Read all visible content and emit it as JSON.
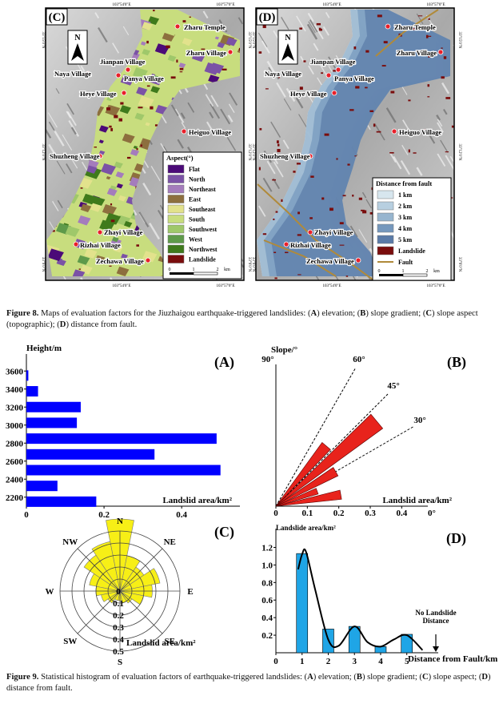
{
  "figure8": {
    "maps": [
      {
        "panel": "(C)",
        "north": "N",
        "lon_labels": [
          "103°54'0\"E",
          "103°57'0\"E"
        ],
        "lat_labels": [
          "33°15'0\"N",
          "33°12'0\"N",
          "33°9'0\"N"
        ],
        "villages": [
          "Zharu Temple",
          "Zharu Village",
          "Jianpan Village",
          "Naya Village",
          "Panya Village",
          "Heye Village",
          "Heiguo Village",
          "Shuzheng Village",
          "Zhayi Village",
          "Rizhai Village",
          "Zechawa Village"
        ],
        "legend": {
          "title": "Aspect(°)",
          "items": [
            {
              "label": "Flat",
              "color": "#4b0a78"
            },
            {
              "label": "North",
              "color": "#7b52a6"
            },
            {
              "label": "Northeast",
              "color": "#a47cbc"
            },
            {
              "label": "East",
              "color": "#8d6f3e"
            },
            {
              "label": "Southeast",
              "color": "#e2e28c"
            },
            {
              "label": "South",
              "color": "#c8dd7e"
            },
            {
              "label": "Southwest",
              "color": "#9fc86a"
            },
            {
              "label": "West",
              "color": "#5e9a4a"
            },
            {
              "label": "Northwest",
              "color": "#3f7a1c"
            },
            {
              "label": "Landslide",
              "color": "#7a0d0d"
            }
          ]
        },
        "scale": [
          "0",
          "1",
          "2",
          "km"
        ]
      },
      {
        "panel": "(D)",
        "north": "N",
        "lon_labels": [
          "103°54'0\"E",
          "103°57'0\"E"
        ],
        "lat_labels": [
          "33°15'0\"N",
          "33°12'0\"N",
          "33°9'0\"N"
        ],
        "villages": [
          "Zharu Temple",
          "Zharu Village",
          "Jianpan Village",
          "Naya Village",
          "Panya Village",
          "Heye Village",
          "Heiguo Village",
          "Shuzheng Village",
          "Zhayi Village",
          "Rizhai Village",
          "Zechawa Village"
        ],
        "legend": {
          "title": "Distance from fault",
          "items": [
            {
              "label": "1 km",
              "color": "#d7e6ee"
            },
            {
              "label": "2 km",
              "color": "#b7cfe0"
            },
            {
              "label": "3 km",
              "color": "#97b5cf"
            },
            {
              "label": "4 km",
              "color": "#7598bd"
            },
            {
              "label": "5 km",
              "color": "#5a7ba8"
            },
            {
              "label": "Landslide",
              "color": "#7a0d0d"
            },
            {
              "label": "Fault",
              "color": "#b08a3a",
              "symbol": "line"
            }
          ]
        },
        "scale": [
          "0",
          "1",
          "2",
          "km"
        ]
      }
    ],
    "caption": [
      "Figure 8.",
      " Maps of evaluation factors for the Jiuzhaigou earthquake-triggered landslides: (",
      "A",
      ") elevation; (",
      "B",
      ") slope gradient; (",
      "C",
      ") slope aspect (topographic); (",
      "D",
      ") distance from fault."
    ]
  },
  "chart_data": [
    {
      "type": "bar",
      "orientation": "horizontal",
      "panel": "(A)",
      "ylabel": "Height/m",
      "xlabel": "Landslid area/km²",
      "y": [
        2150,
        2325,
        2500,
        2675,
        2850,
        3025,
        3200,
        3375,
        3550
      ],
      "values": [
        0.18,
        0.08,
        0.5,
        0.33,
        0.49,
        0.13,
        0.14,
        0.03,
        0.005
      ],
      "color": "#0000ff",
      "xlim": [
        0,
        0.55
      ],
      "xticks": [
        0,
        0.2,
        0.4
      ],
      "ylim": [
        2100,
        3700
      ],
      "yticks": [
        2200,
        2400,
        2600,
        2800,
        3000,
        3200,
        3400,
        3600
      ]
    },
    {
      "type": "radial_bar",
      "panel": "(B)",
      "ylabel": "Slope/°",
      "xlabel": "Landslid area/km²",
      "angles": [
        10,
        20,
        30,
        40,
        50
      ],
      "values": [
        0.21,
        0.14,
        0.22,
        0.42,
        0.25
      ],
      "color": "#e8231c",
      "xlim": [
        0,
        0.45
      ],
      "xticks": [
        0,
        0.1,
        0.2,
        0.3,
        0.4
      ],
      "aticks": [
        {
          "value": 0,
          "label": "0°"
        },
        {
          "value": 30,
          "label": "30°"
        },
        {
          "value": 45,
          "label": "45°"
        },
        {
          "value": 60,
          "label": "60°"
        },
        {
          "value": 90,
          "label": "90°"
        }
      ]
    },
    {
      "type": "polar_bar",
      "panel": "(C)",
      "rlabel": "Landslid area/km²",
      "categories": [
        "N",
        null,
        "NE",
        null,
        "E",
        null,
        "SE",
        null,
        "S",
        null,
        "SW",
        null,
        "W",
        null,
        "NW",
        null
      ],
      "values": [
        0.6,
        0.3,
        0.24,
        0.34,
        0.27,
        0.2,
        0.12,
        0.1,
        0.08,
        0.08,
        0.12,
        0.16,
        0.2,
        0.26,
        0.36,
        0.42
      ],
      "color": "#f7ef16",
      "rlim": [
        0,
        0.5
      ],
      "rticks": [
        0,
        0.1,
        0.2,
        0.3,
        0.4,
        0.5
      ]
    },
    {
      "type": "bar",
      "orientation": "vertical",
      "panel": "(D)",
      "ylabel": "Landslide area/km²",
      "xlabel": "Distance from Fault/km",
      "annotation": "No Landslide Distance",
      "x": [
        1,
        2,
        3,
        4,
        5
      ],
      "values": [
        1.13,
        0.27,
        0.3,
        0.07,
        0.21
      ],
      "color": "#1fa5e6",
      "curve": {
        "x": [
          0.85,
          1,
          1.15,
          1.5,
          2,
          2.4,
          3,
          3.5,
          4,
          4.5,
          5,
          5.6
        ],
        "values": [
          0.95,
          1.12,
          1.15,
          0.72,
          0.15,
          0.08,
          0.3,
          0.12,
          0.07,
          0.15,
          0.2,
          0.03
        ],
        "color": "#000000"
      },
      "xlim": [
        0,
        6.2
      ],
      "xticks": [
        0,
        1,
        2,
        3,
        4,
        5
      ],
      "ylim": [
        0,
        1.25
      ],
      "yticks": [
        0.2,
        0.4,
        0.6,
        0.8,
        {
          "value": 1,
          "label": "1.0"
        },
        1.2
      ]
    }
  ],
  "figure9": {
    "caption": [
      "Figure 9.",
      " Statistical histogram of evaluation factors of earthquake-triggered landslides: (",
      "A",
      ") elevation; (",
      "B",
      ") slope gradient; (",
      "C",
      ") slope aspect; (",
      "D",
      ") distance from fault."
    ]
  }
}
